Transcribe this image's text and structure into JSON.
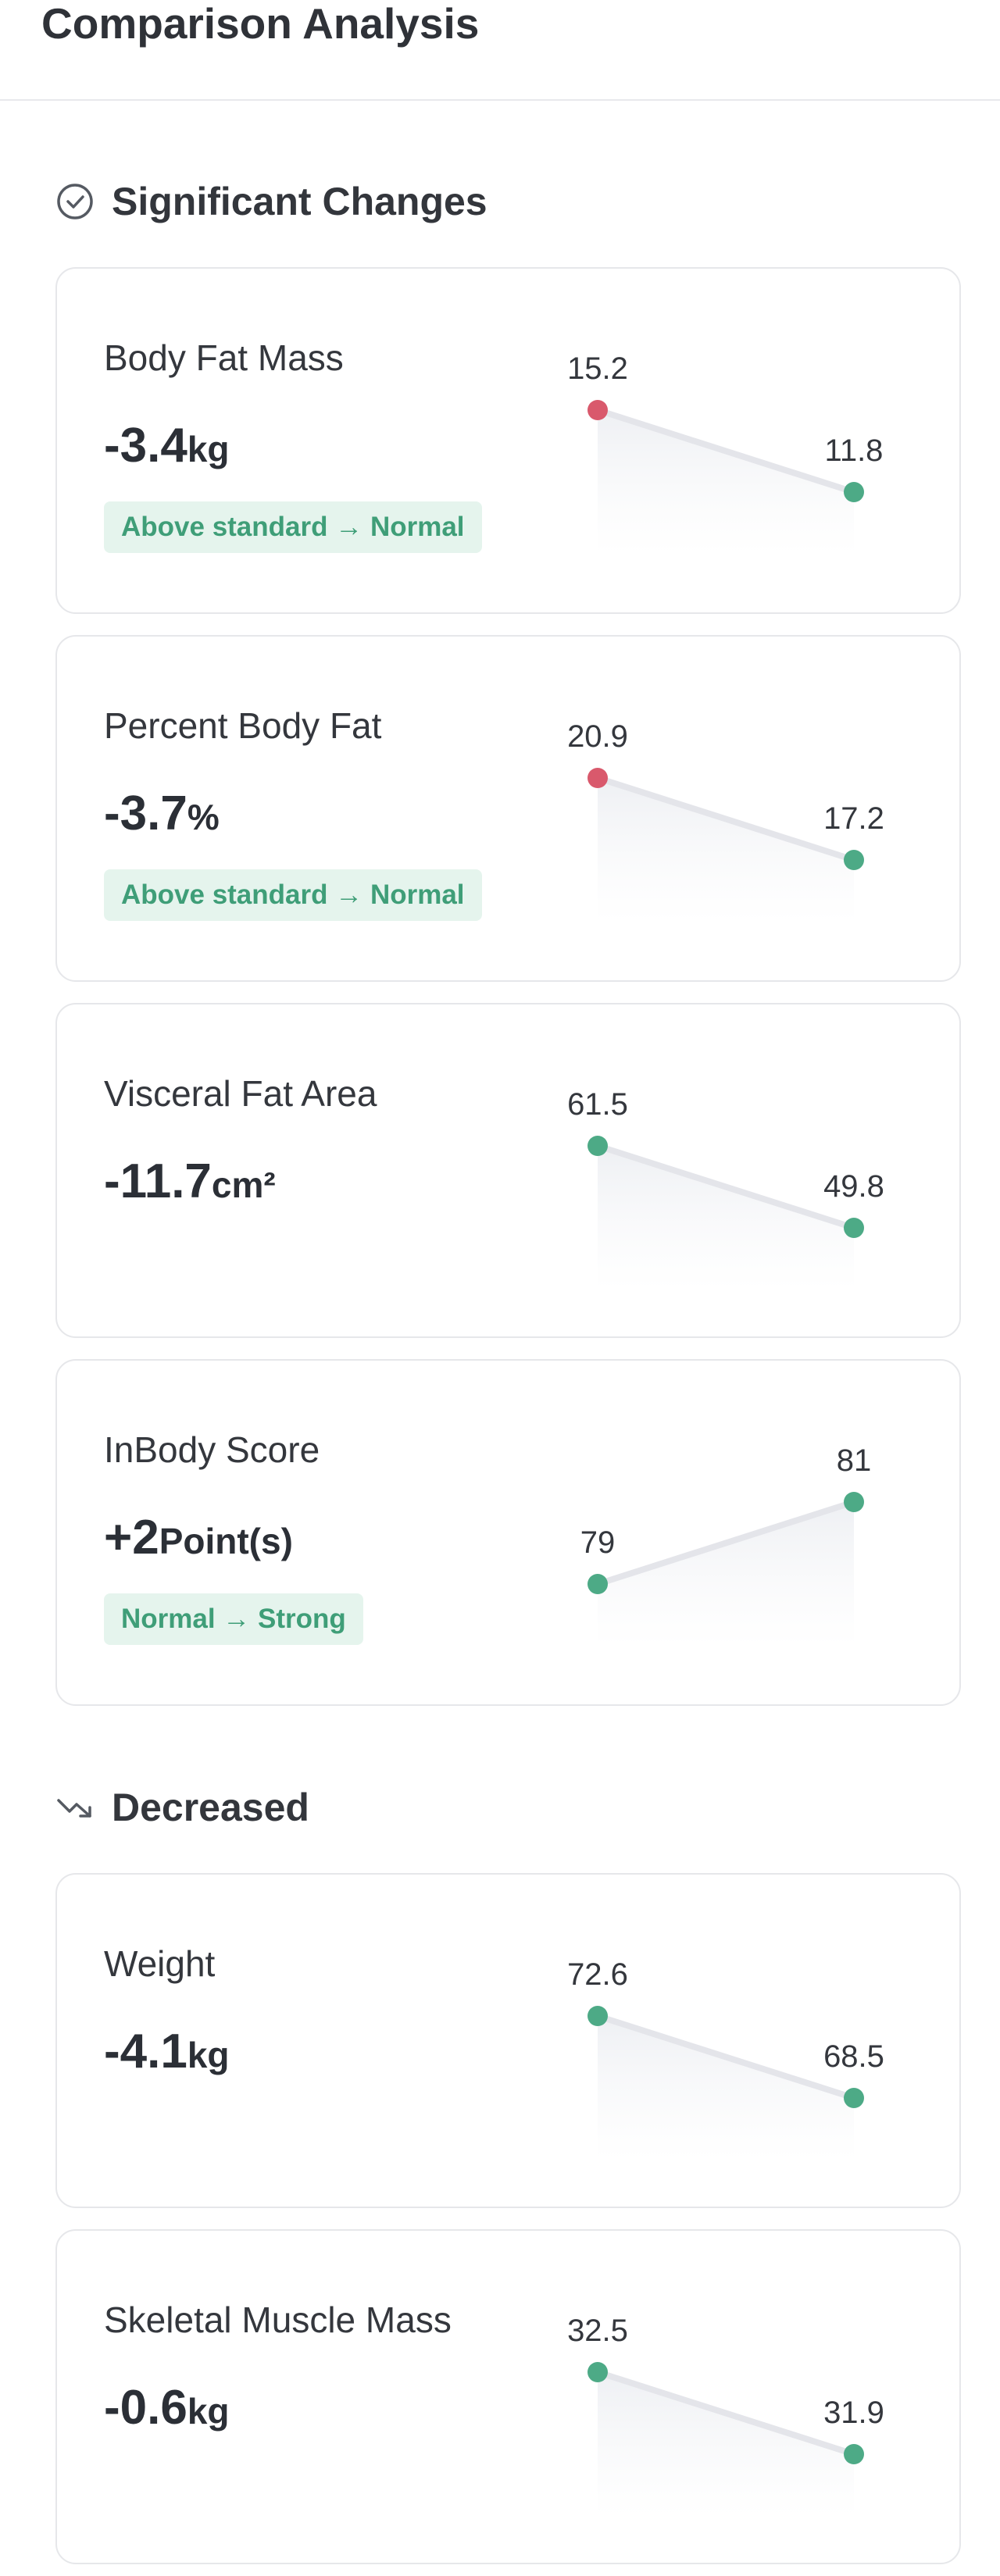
{
  "header": {
    "title": "Comparison Analysis"
  },
  "sections": [
    {
      "title": "Significant Changes",
      "cards": [
        {
          "label": "Body Fat Mass",
          "change": "-3.4",
          "unit": "kg",
          "badge": "Above standard → Normal",
          "values": [
            15.2,
            11.8
          ],
          "colors": [
            "#d9596c",
            "#4daa86"
          ]
        },
        {
          "label": "Percent Body Fat",
          "change": "-3.7",
          "unit": "%",
          "badge": "Above standard → Normal",
          "values": [
            20.9,
            17.2
          ],
          "colors": [
            "#d9596c",
            "#4daa86"
          ]
        },
        {
          "label": "Visceral Fat Area",
          "change": "-11.7",
          "unit": "cm²",
          "values": [
            61.5,
            49.8
          ],
          "colors": [
            "#4daa86",
            "#4daa86"
          ]
        },
        {
          "label": "InBody Score",
          "change": "+2",
          "unit": "Point(s)",
          "badge": "Normal → Strong",
          "values": [
            79,
            81
          ],
          "colors": [
            "#4daa86",
            "#4daa86"
          ]
        }
      ]
    },
    {
      "title": "Decreased",
      "cards": [
        {
          "label": "Weight",
          "change": "-4.1",
          "unit": "kg",
          "values": [
            72.6,
            68.5
          ],
          "colors": [
            "#4daa86",
            "#4daa86"
          ]
        },
        {
          "label": "Skeletal Muscle Mass",
          "change": "-0.6",
          "unit": "kg",
          "values": [
            32.5,
            31.9
          ],
          "colors": [
            "#4daa86",
            "#4daa86"
          ]
        }
      ]
    }
  ]
}
